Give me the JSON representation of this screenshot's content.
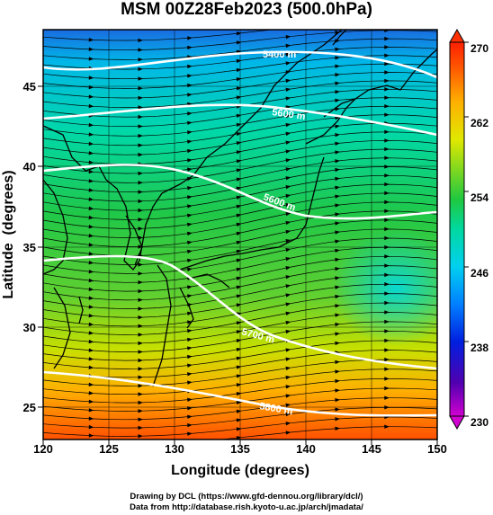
{
  "title": "MSM 00Z28Feb2023 (500.0hPa)",
  "x_axis": {
    "label": "Longitude (degrees)",
    "ticks": [
      "120",
      "125",
      "130",
      "135",
      "140",
      "145",
      "150"
    ],
    "range": [
      120,
      150
    ]
  },
  "y_axis": {
    "label": "Latitude  (degrees)",
    "ticks": [
      "25",
      "30",
      "35",
      "40",
      "45"
    ],
    "range": [
      22.5,
      48
    ]
  },
  "colorbar": {
    "ticks": [
      "230",
      "238",
      "246",
      "254",
      "262",
      "270"
    ],
    "range": [
      230,
      270
    ],
    "colors": [
      "#d000d0",
      "#3000c0",
      "#0040ff",
      "#00b4ff",
      "#00e0d8",
      "#00d8a0",
      "#20c840",
      "#80d820",
      "#e0e800",
      "#ffb000",
      "#ff6000",
      "#ff2800"
    ]
  },
  "contours": {
    "labels": [
      "5400 m",
      "5600 m",
      "5600 m",
      "5700 m",
      "5800 m"
    ],
    "color": "#ffffff"
  },
  "footer": {
    "line1": "Drawing by DCL (https://www.gfd-dennou.org/library/dcl/)",
    "line2": "Data from http://database.rish.kyoto-u.ac.jp/arch/jmadata/"
  }
}
